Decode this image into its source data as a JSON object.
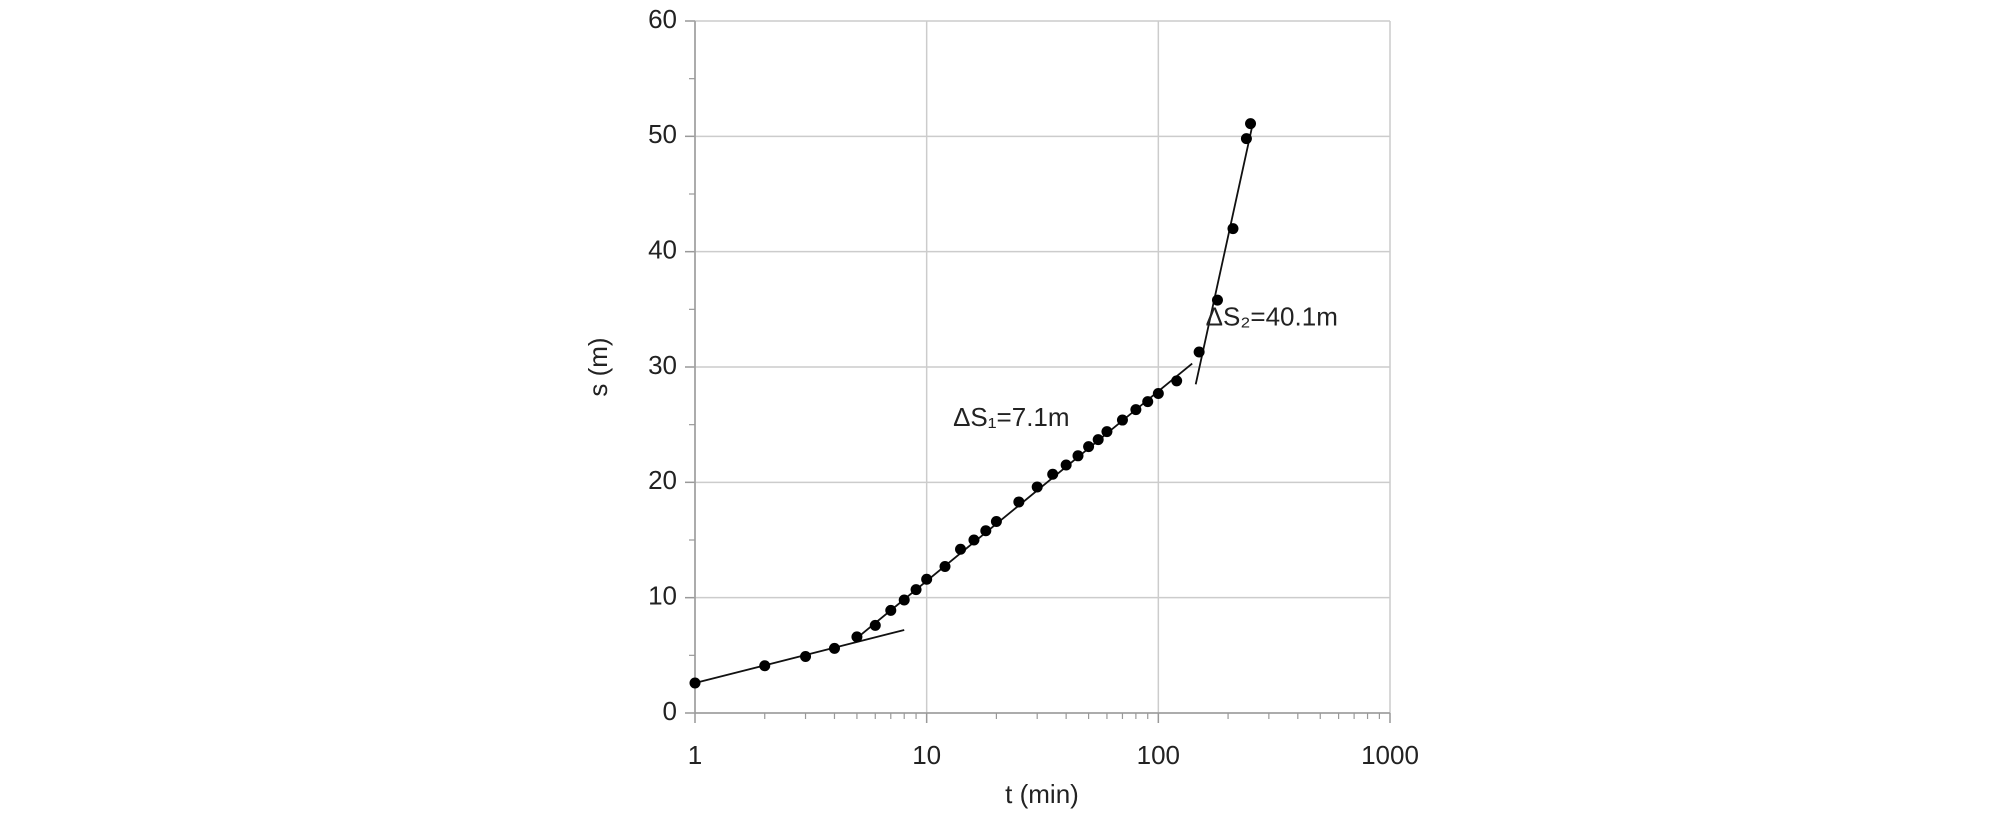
{
  "chart_data": {
    "type": "scatter",
    "x_label": "t (min)",
    "y_label": "s (m)",
    "x": [
      1,
      2,
      3,
      4,
      5,
      6,
      7,
      8,
      9,
      10,
      12,
      14,
      16,
      18,
      20,
      25,
      30,
      35,
      40,
      45,
      50,
      55,
      60,
      70,
      80,
      90,
      100,
      120,
      150,
      180,
      210,
      240,
      250
    ],
    "values": [
      2.6,
      4.1,
      4.9,
      5.6,
      6.6,
      7.6,
      8.9,
      9.8,
      10.7,
      11.6,
      12.7,
      14.2,
      15.0,
      15.8,
      16.6,
      18.3,
      19.6,
      20.7,
      21.5,
      22.3,
      23.1,
      23.7,
      24.4,
      25.4,
      26.3,
      27.0,
      27.7,
      28.8,
      31.3,
      35.8,
      42.0,
      49.8,
      51.1
    ],
    "color": "#000000",
    "fit_lines": [
      {
        "x": [
          1,
          8
        ],
        "values": [
          2.6,
          7.2
        ]
      },
      {
        "x": [
          5,
          140
        ],
        "values": [
          6.5,
          30.3
        ]
      },
      {
        "x": [
          145,
          255
        ],
        "values": [
          28.5,
          51.0
        ]
      }
    ],
    "annotations": [
      {
        "text": "ΔS₁=7.1m",
        "x": 13,
        "y": 25.5
      },
      {
        "text": "ΔS₂=40.1m",
        "x": 160,
        "y": 34.2
      }
    ],
    "xscale": "log",
    "xlim": [
      1,
      1000
    ],
    "xticks": [
      1,
      10,
      100,
      1000
    ],
    "ylim": [
      0,
      60
    ],
    "yticks": [
      0,
      10,
      20,
      30,
      40,
      50,
      60
    ],
    "grid": true,
    "minor_ticks": true
  }
}
